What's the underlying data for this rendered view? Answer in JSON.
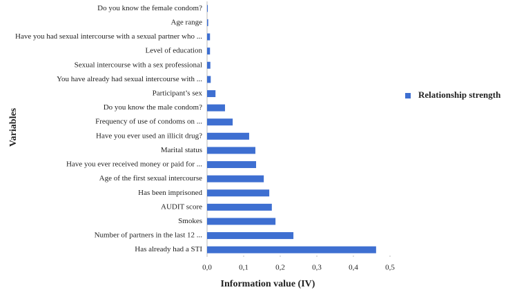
{
  "chart_data": {
    "type": "hbar",
    "x_label": "Information value (IV)",
    "y_label": "Variables",
    "categories": [
      "Do you know the female condom?",
      "Age range",
      "Have you had sexual intercourse with a sexual partner who ...",
      "Level of education",
      "Sexual intercourse with a sex professional",
      "You have already had sexual intercourse with ...",
      "Participant’s sex",
      "Do you know the male condom?",
      "Frequency of use of condoms on ...",
      "Have you ever used an illicit drug?",
      "Marital status",
      "Have you ever received money or paid for ...",
      "Age of the first sexual intercourse",
      "Has been imprisoned",
      "AUDIT score",
      "Smokes",
      "Number of partners in the last 12 ...",
      "Has already had a STI"
    ],
    "series": [
      {
        "name": "Relationship strength",
        "color": "#3e6fd1",
        "values": [
          0.002,
          0.003,
          0.008,
          0.008,
          0.009,
          0.01,
          0.023,
          0.049,
          0.07,
          0.115,
          0.132,
          0.134,
          0.155,
          0.17,
          0.177,
          0.187,
          0.236,
          0.462
        ]
      }
    ],
    "xlim": [
      0,
      0.5
    ],
    "xticks": [
      {
        "value": 0,
        "label": "0,0"
      },
      {
        "value": 0.1,
        "label": "0,1"
      },
      {
        "value": 0.2,
        "label": "0,2"
      },
      {
        "value": 0.3,
        "label": "0,3"
      },
      {
        "value": 0.4,
        "label": "0,4"
      },
      {
        "value": 0.5,
        "label": "0,5"
      }
    ],
    "legend": "right"
  }
}
